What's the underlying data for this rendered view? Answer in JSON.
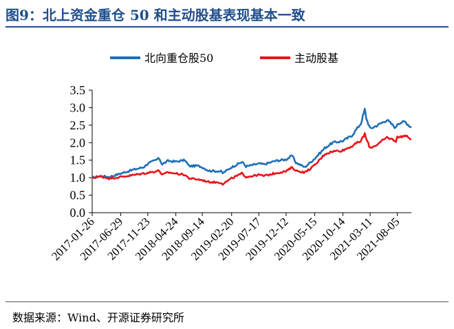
{
  "figure": {
    "title": "图9：北上资金重仓 50 和主动股基表现基本一致",
    "source": "数据来源：Wind、开源证券研究所"
  },
  "chart_data": {
    "type": "line",
    "title": "",
    "xlabel": "",
    "ylabel": "",
    "ylim": [
      0.0,
      3.5
    ],
    "yticks": [
      "0.0",
      "0.5",
      "1.0",
      "1.5",
      "2.0",
      "2.5",
      "3.0",
      "3.5"
    ],
    "xlim": [
      "2017-01-26",
      "2021-10-20"
    ],
    "xticks": [
      "2017-01-26",
      "2017-06-29",
      "2017-11-23",
      "2018-04-24",
      "2018-09-14",
      "2019-02-20",
      "2019-07-17",
      "2019-12-12",
      "2020-05-15",
      "2020-10-14",
      "2021-03-11",
      "2021-08-05"
    ],
    "grid": false,
    "legend_position": "top-center",
    "series": [
      {
        "name": "北向重仓股50",
        "color": "#1f6fb5",
        "points": [
          [
            "2017-01-26",
            1.0
          ],
          [
            "2017-03-15",
            1.05
          ],
          [
            "2017-04-28",
            1.02
          ],
          [
            "2017-06-29",
            1.12
          ],
          [
            "2017-08-31",
            1.22
          ],
          [
            "2017-10-31",
            1.3
          ],
          [
            "2017-11-23",
            1.4
          ],
          [
            "2018-01-24",
            1.55
          ],
          [
            "2018-02-09",
            1.38
          ],
          [
            "2018-03-12",
            1.48
          ],
          [
            "2018-04-24",
            1.46
          ],
          [
            "2018-06-12",
            1.5
          ],
          [
            "2018-07-05",
            1.33
          ],
          [
            "2018-08-20",
            1.34
          ],
          [
            "2018-09-14",
            1.3
          ],
          [
            "2018-10-18",
            1.2
          ],
          [
            "2018-12-24",
            1.18
          ],
          [
            "2019-01-03",
            1.13
          ],
          [
            "2019-02-20",
            1.3
          ],
          [
            "2019-04-18",
            1.45
          ],
          [
            "2019-05-09",
            1.32
          ],
          [
            "2019-07-17",
            1.4
          ],
          [
            "2019-08-15",
            1.38
          ],
          [
            "2019-10-15",
            1.48
          ],
          [
            "2019-12-12",
            1.52
          ],
          [
            "2020-01-14",
            1.63
          ],
          [
            "2020-02-03",
            1.43
          ],
          [
            "2020-03-23",
            1.3
          ],
          [
            "2020-05-15",
            1.55
          ],
          [
            "2020-07-09",
            1.85
          ],
          [
            "2020-08-20",
            2.0
          ],
          [
            "2020-10-14",
            2.05
          ],
          [
            "2020-12-01",
            2.2
          ],
          [
            "2021-01-20",
            2.55
          ],
          [
            "2021-02-10",
            2.95
          ],
          [
            "2021-02-18",
            2.7
          ],
          [
            "2021-03-11",
            2.4
          ],
          [
            "2021-04-20",
            2.5
          ],
          [
            "2021-06-10",
            2.65
          ],
          [
            "2021-07-28",
            2.42
          ],
          [
            "2021-08-05",
            2.55
          ],
          [
            "2021-09-15",
            2.6
          ],
          [
            "2021-10-20",
            2.43
          ]
        ]
      },
      {
        "name": "主动股基",
        "color": "#e8131a",
        "points": [
          [
            "2017-01-26",
            1.0
          ],
          [
            "2017-03-15",
            1.03
          ],
          [
            "2017-04-28",
            0.98
          ],
          [
            "2017-06-29",
            1.02
          ],
          [
            "2017-08-31",
            1.07
          ],
          [
            "2017-10-31",
            1.12
          ],
          [
            "2017-11-23",
            1.14
          ],
          [
            "2018-01-24",
            1.2
          ],
          [
            "2018-02-09",
            1.08
          ],
          [
            "2018-03-12",
            1.15
          ],
          [
            "2018-04-24",
            1.12
          ],
          [
            "2018-06-12",
            1.08
          ],
          [
            "2018-07-05",
            0.98
          ],
          [
            "2018-08-20",
            0.95
          ],
          [
            "2018-09-14",
            0.93
          ],
          [
            "2018-10-18",
            0.88
          ],
          [
            "2018-12-24",
            0.86
          ],
          [
            "2019-01-03",
            0.82
          ],
          [
            "2019-02-20",
            0.98
          ],
          [
            "2019-04-18",
            1.12
          ],
          [
            "2019-05-09",
            1.02
          ],
          [
            "2019-07-17",
            1.08
          ],
          [
            "2019-08-15",
            1.05
          ],
          [
            "2019-10-15",
            1.13
          ],
          [
            "2019-12-12",
            1.18
          ],
          [
            "2020-01-14",
            1.3
          ],
          [
            "2020-02-03",
            1.2
          ],
          [
            "2020-03-23",
            1.15
          ],
          [
            "2020-05-15",
            1.35
          ],
          [
            "2020-07-09",
            1.68
          ],
          [
            "2020-08-20",
            1.75
          ],
          [
            "2020-10-14",
            1.78
          ],
          [
            "2020-12-01",
            1.9
          ],
          [
            "2021-01-20",
            2.05
          ],
          [
            "2021-02-10",
            2.25
          ],
          [
            "2021-02-18",
            2.1
          ],
          [
            "2021-03-11",
            1.85
          ],
          [
            "2021-04-20",
            1.95
          ],
          [
            "2021-06-10",
            2.15
          ],
          [
            "2021-07-28",
            2.05
          ],
          [
            "2021-08-05",
            2.15
          ],
          [
            "2021-09-15",
            2.2
          ],
          [
            "2021-10-20",
            2.1
          ]
        ]
      }
    ]
  }
}
